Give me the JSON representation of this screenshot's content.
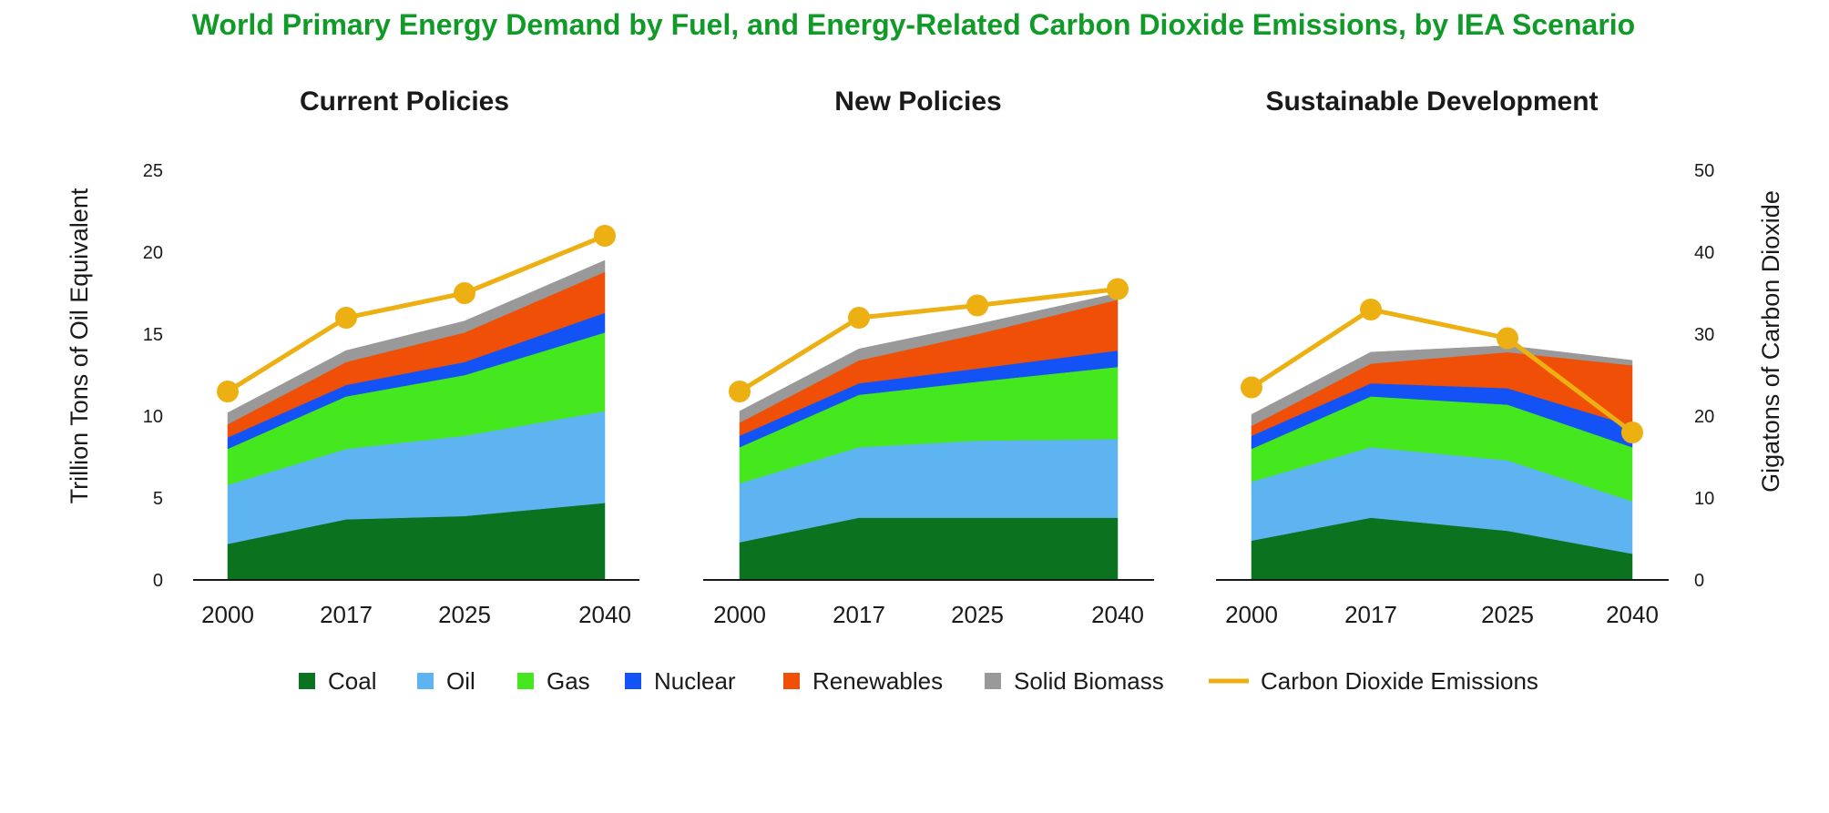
{
  "chart_data": {
    "type": "area",
    "title": "World Primary Energy Demand by Fuel, and Energy-Related Carbon Dioxide Emissions, by IEA Scenario",
    "ylabel_left": "Trillion Tons of Oil Equivalent",
    "ylabel_right": "Gigatons of Carbon Dioxide",
    "ylim_left": [
      0,
      25
    ],
    "ylim_right": [
      0,
      50
    ],
    "yticks_left": [
      "0",
      "5",
      "10",
      "15",
      "20",
      "25"
    ],
    "yticks_right": [
      "0",
      "10",
      "20",
      "30",
      "40",
      "50"
    ],
    "x": [
      "2000",
      "2017",
      "2025",
      "2040"
    ],
    "stack_order": [
      "Coal",
      "Oil",
      "Gas",
      "Nuclear",
      "Renewables",
      "Solid Biomass"
    ],
    "colors": {
      "Coal": "#0b7320",
      "Oil": "#5db4f0",
      "Gas": "#45e81e",
      "Nuclear": "#1352f5",
      "Renewables": "#ef4f06",
      "Solid Biomass": "#999999",
      "Carbon Dioxide Emissions": "#edb012",
      "title": "#109a27",
      "axis": "#1a1a1a"
    },
    "panels": [
      {
        "name": "Current Policies",
        "series": [
          {
            "name": "Coal",
            "values": [
              2.2,
              3.7,
              3.9,
              4.7
            ]
          },
          {
            "name": "Oil",
            "values": [
              3.6,
              4.3,
              4.9,
              5.6
            ]
          },
          {
            "name": "Gas",
            "values": [
              2.2,
              3.2,
              3.7,
              4.8
            ]
          },
          {
            "name": "Nuclear",
            "values": [
              0.7,
              0.7,
              0.8,
              1.2
            ]
          },
          {
            "name": "Renewables",
            "values": [
              0.8,
              1.4,
              1.8,
              2.5
            ]
          },
          {
            "name": "Solid Biomass",
            "values": [
              0.7,
              0.7,
              0.7,
              0.7
            ]
          }
        ],
        "co2": [
          23,
          32,
          35,
          42
        ]
      },
      {
        "name": "New Policies",
        "series": [
          {
            "name": "Coal",
            "values": [
              2.3,
              3.8,
              3.8,
              3.8
            ]
          },
          {
            "name": "Oil",
            "values": [
              3.6,
              4.3,
              4.7,
              4.8
            ]
          },
          {
            "name": "Gas",
            "values": [
              2.2,
              3.2,
              3.6,
              4.4
            ]
          },
          {
            "name": "Nuclear",
            "values": [
              0.7,
              0.7,
              0.8,
              1.0
            ]
          },
          {
            "name": "Renewables",
            "values": [
              0.8,
              1.4,
              2.1,
              3.1
            ]
          },
          {
            "name": "Solid Biomass",
            "values": [
              0.7,
              0.7,
              0.6,
              0.4
            ]
          }
        ],
        "co2": [
          23,
          32,
          33.5,
          35.5
        ]
      },
      {
        "name": "Sustainable Development",
        "series": [
          {
            "name": "Coal",
            "values": [
              2.4,
              3.8,
              3.0,
              1.6
            ]
          },
          {
            "name": "Oil",
            "values": [
              3.6,
              4.3,
              4.3,
              3.2
            ]
          },
          {
            "name": "Gas",
            "values": [
              2.0,
              3.1,
              3.4,
              3.3
            ]
          },
          {
            "name": "Nuclear",
            "values": [
              0.8,
              0.8,
              1.0,
              1.3
            ]
          },
          {
            "name": "Renewables",
            "values": [
              0.6,
              1.2,
              2.2,
              3.7
            ]
          },
          {
            "name": "Solid Biomass",
            "values": [
              0.7,
              0.7,
              0.4,
              0.3
            ]
          }
        ],
        "co2": [
          23.5,
          33,
          29.5,
          18
        ]
      }
    ],
    "legend": [
      "Coal",
      "Oil",
      "Gas",
      "Nuclear",
      "Renewables",
      "Solid Biomass",
      "Carbon Dioxide Emissions"
    ]
  }
}
